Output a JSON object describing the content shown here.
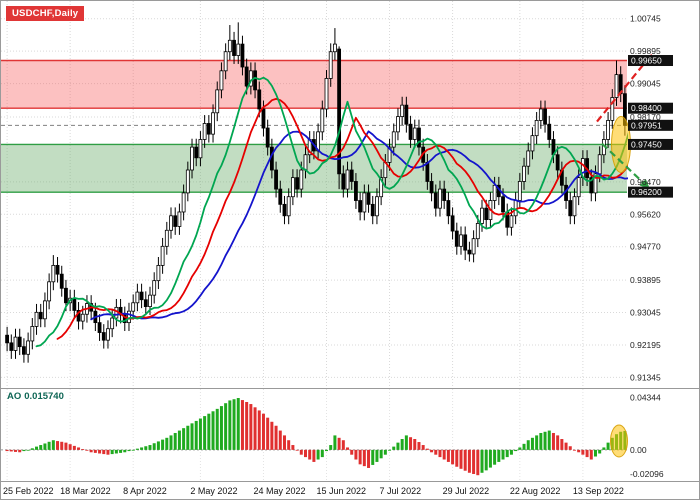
{
  "window": {
    "symbol_label": "USDCHF,Daily"
  },
  "chart_data": {
    "type": "candlestick",
    "title": "USDCHF,Daily",
    "timeframe": "Daily",
    "ylim": [
      0.9125,
      1.01
    ],
    "y_ticks": [
      1.00745,
      0.99895,
      0.99045,
      0.9817,
      0.9647,
      0.9562,
      0.9477,
      0.93895,
      0.93045,
      0.92195,
      0.91345
    ],
    "x_ticks": [
      {
        "label": "25 Feb 2022",
        "i": 0
      },
      {
        "label": "18 Mar 2022",
        "i": 15
      },
      {
        "label": "8 Apr 2022",
        "i": 30
      },
      {
        "label": "2 May 2022",
        "i": 46
      },
      {
        "label": "24 May 2022",
        "i": 61
      },
      {
        "label": "15 Jun 2022",
        "i": 76
      },
      {
        "label": "7 Jul 2022",
        "i": 91
      },
      {
        "label": "29 Jul 2022",
        "i": 106
      },
      {
        "label": "22 Aug 2022",
        "i": 122
      },
      {
        "label": "13 Sep 2022",
        "i": 137
      }
    ],
    "levels": {
      "resistance_top": 0.9965,
      "resistance_bottom": 0.984,
      "current_price": 0.97951,
      "support_top": 0.9745,
      "support_bottom": 0.962
    },
    "level_labels": [
      "0.99650",
      "0.98400",
      "0.97951",
      "0.97450",
      "0.96200"
    ],
    "zones": [
      {
        "name": "resistance-zone",
        "from": 0.984,
        "to": 0.9965,
        "fill": "rgba(246,92,92,0.38)",
        "border": "#e03535"
      },
      {
        "name": "support-zone",
        "from": 0.962,
        "to": 0.9745,
        "fill": "rgba(110,175,110,0.42)",
        "border": "#2f9e44"
      }
    ],
    "candles": {
      "first_open": 0.9245,
      "wick": 0.0022,
      "closes": [
        0.9225,
        0.9205,
        0.924,
        0.9215,
        0.9195,
        0.923,
        0.9268,
        0.9305,
        0.9288,
        0.9335,
        0.9385,
        0.9428,
        0.9405,
        0.9368,
        0.933,
        0.9342,
        0.931,
        0.9282,
        0.93,
        0.9328,
        0.9308,
        0.9278,
        0.9252,
        0.9232,
        0.9262,
        0.929,
        0.9318,
        0.9298,
        0.9278,
        0.9308,
        0.933,
        0.9358,
        0.9338,
        0.932,
        0.935,
        0.9388,
        0.9428,
        0.9478,
        0.952,
        0.9558,
        0.953,
        0.9568,
        0.9618,
        0.9678,
        0.9738,
        0.971,
        0.9758,
        0.98,
        0.9772,
        0.9828,
        0.9888,
        0.9938,
        0.9988,
        1.0018,
        0.9978,
        1.0008,
        0.9948,
        0.9898,
        0.9938,
        0.9888,
        0.9838,
        0.9788,
        0.9738,
        0.9678,
        0.9628,
        0.9588,
        0.9558,
        0.9608,
        0.9658,
        0.9628,
        0.9678,
        0.9718,
        0.9758,
        0.9728,
        0.9778,
        0.9838,
        0.9918,
        0.9988,
        1.0008,
        0.9668,
        0.9628,
        0.9678,
        0.9648,
        0.9598,
        0.9568,
        0.9618,
        0.9588,
        0.9558,
        0.9608,
        0.9658,
        0.9698,
        0.9738,
        0.9778,
        0.9818,
        0.9848,
        0.9798,
        0.9758,
        0.9788,
        0.9738,
        0.9698,
        0.9648,
        0.9618,
        0.9578,
        0.9628,
        0.9598,
        0.9558,
        0.9518,
        0.9478,
        0.9508,
        0.9468,
        0.9458,
        0.9498,
        0.9538,
        0.9578,
        0.9548,
        0.9598,
        0.9638,
        0.9608,
        0.9568,
        0.9528,
        0.9558,
        0.9598,
        0.9648,
        0.9688,
        0.9728,
        0.9768,
        0.9808,
        0.9838,
        0.9798,
        0.9758,
        0.9718,
        0.9678,
        0.9638,
        0.9598,
        0.9558,
        0.9608,
        0.9658,
        0.9708,
        0.9658,
        0.9618,
        0.9668,
        0.9718,
        0.9758,
        0.9808,
        0.9868,
        0.9928,
        0.9878,
        0.9795
      ],
      "overrides": {
        "11": {
          "h": 0.9455
        },
        "53": {
          "h": 1.0058
        },
        "55": {
          "h": 1.0065
        },
        "78": {
          "h": 1.005
        },
        "79": {
          "o": 0.9995,
          "h": 1.0002,
          "l": 0.9628
        },
        "109": {
          "l": 0.9442
        },
        "110": {
          "l": 0.9438
        },
        "145": {
          "h": 0.9965
        },
        "147": {
          "l": 0.9768
        }
      }
    },
    "moving_averages": [
      {
        "name": "jaw",
        "period": 13,
        "shift": 8,
        "color": "#1414cc"
      },
      {
        "name": "teeth",
        "period": 8,
        "shift": 5,
        "color": "#e60000"
      },
      {
        "name": "lips",
        "period": 5,
        "shift": 3,
        "color": "#00a651"
      }
    ],
    "ao": {
      "label": "AO",
      "value_label": "0.015740",
      "axis": [
        {
          "label": "0.04344",
          "v": 0.04344
        },
        {
          "label": "0.00",
          "v": 0.0
        },
        {
          "label": "-0.02096",
          "v": -0.02096
        }
      ],
      "colors": {
        "up": "#1faa1f",
        "down": "#e03030"
      },
      "values": [
        -0.001,
        -0.0013,
        -0.0017,
        -0.002,
        -0.001,
        0.0,
        0.0013,
        0.0027,
        0.004,
        0.0053,
        0.0067,
        0.008,
        0.0073,
        0.0067,
        0.006,
        0.0047,
        0.0033,
        0.002,
        0.0007,
        -0.0007,
        -0.002,
        -0.0025,
        -0.003,
        -0.0035,
        -0.004,
        -0.0035,
        -0.003,
        -0.0025,
        -0.002,
        -0.001,
        0.0,
        0.001,
        0.002,
        0.003,
        0.004,
        0.0055,
        0.007,
        0.0085,
        0.01,
        0.012,
        0.014,
        0.016,
        0.018,
        0.02,
        0.022,
        0.024,
        0.026,
        0.028,
        0.03,
        0.032,
        0.034,
        0.0363,
        0.0387,
        0.041,
        0.042,
        0.043,
        0.0413,
        0.0397,
        0.038,
        0.0353,
        0.0327,
        0.03,
        0.0267,
        0.0233,
        0.02,
        0.016,
        0.012,
        0.008,
        0.004,
        0.0,
        -0.004,
        -0.006,
        -0.008,
        -0.01,
        -0.008,
        -0.006,
        -0.001,
        0.004,
        0.012,
        0.01,
        0.008,
        0.002,
        -0.004,
        -0.008,
        -0.012,
        -0.0135,
        -0.015,
        -0.0125,
        -0.01,
        -0.007,
        -0.004,
        -0.0007,
        0.0027,
        0.006,
        0.009,
        0.012,
        0.0105,
        0.009,
        0.0065,
        0.004,
        0.001,
        -0.002,
        -0.004,
        -0.006,
        -0.008,
        -0.01,
        -0.012,
        -0.014,
        -0.0157,
        -0.0173,
        -0.019,
        -0.02,
        -0.021,
        -0.019,
        -0.017,
        -0.0147,
        -0.0123,
        -0.01,
        -0.008,
        -0.006,
        -0.004,
        -0.001,
        0.002,
        0.005,
        0.008,
        0.01,
        0.012,
        0.014,
        0.015,
        0.016,
        0.014,
        0.012,
        0.009,
        0.006,
        0.003,
        0.0,
        -0.002,
        -0.004,
        -0.006,
        -0.008,
        -0.0055,
        -0.003,
        0.002,
        0.006,
        0.01,
        0.013,
        0.015,
        0.0157
      ]
    },
    "annotations": {
      "bull_arrow_color": "#e02020",
      "bear_arrow_color": "#2f9e44",
      "highlight_fill": "rgba(255,193,7,0.55)",
      "highlight_stroke": "rgba(214,157,0,0.9)"
    }
  }
}
